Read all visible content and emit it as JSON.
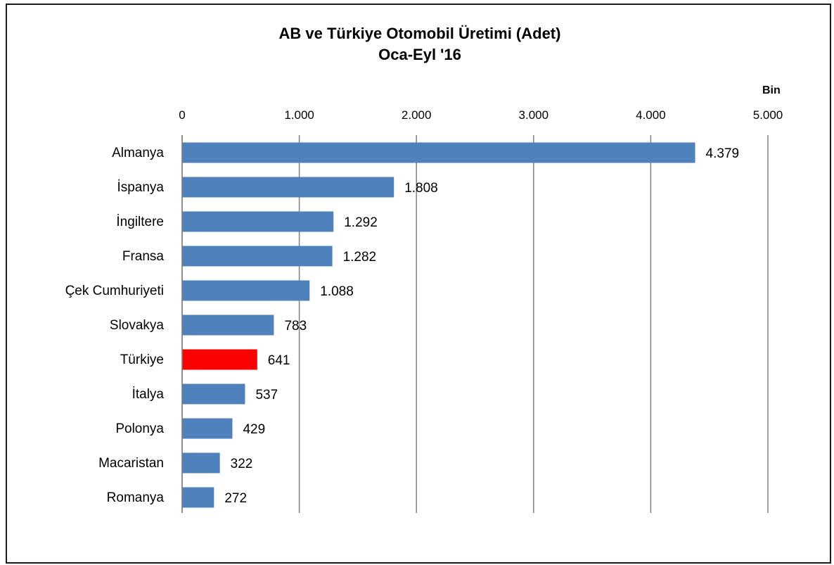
{
  "chart_data": {
    "type": "bar",
    "orientation": "horizontal",
    "title": "AB ve Türkiye Otomobil Üretimi (Adet)",
    "subtitle": "Oca-Eyl '16",
    "unit": "Bin",
    "categories": [
      "Almanya",
      "İspanya",
      "İngiltere",
      "Fransa",
      "Çek Cumhuriyeti",
      "Slovakya",
      "Türkiye",
      "İtalya",
      "Polonya",
      "Macaristan",
      "Romanya"
    ],
    "values": [
      4379,
      1808,
      1292,
      1282,
      1088,
      783,
      641,
      537,
      429,
      322,
      272
    ],
    "value_labels": [
      "4.379",
      "1.808",
      "1.292",
      "1.282",
      "1.088",
      "783",
      "641",
      "537",
      "429",
      "322",
      "272"
    ],
    "xlim": [
      0,
      5000
    ],
    "x_ticks": [
      0,
      1000,
      2000,
      3000,
      4000,
      5000
    ],
    "x_tick_labels": [
      "0",
      "1.000",
      "2.000",
      "3.000",
      "4.000",
      "5.000"
    ],
    "axis_position": "top",
    "grid": true,
    "colors": {
      "bar": "#4f81bd",
      "highlight": "#ff0000",
      "grid": "#808080"
    },
    "highlight_category": "Türkiye"
  }
}
